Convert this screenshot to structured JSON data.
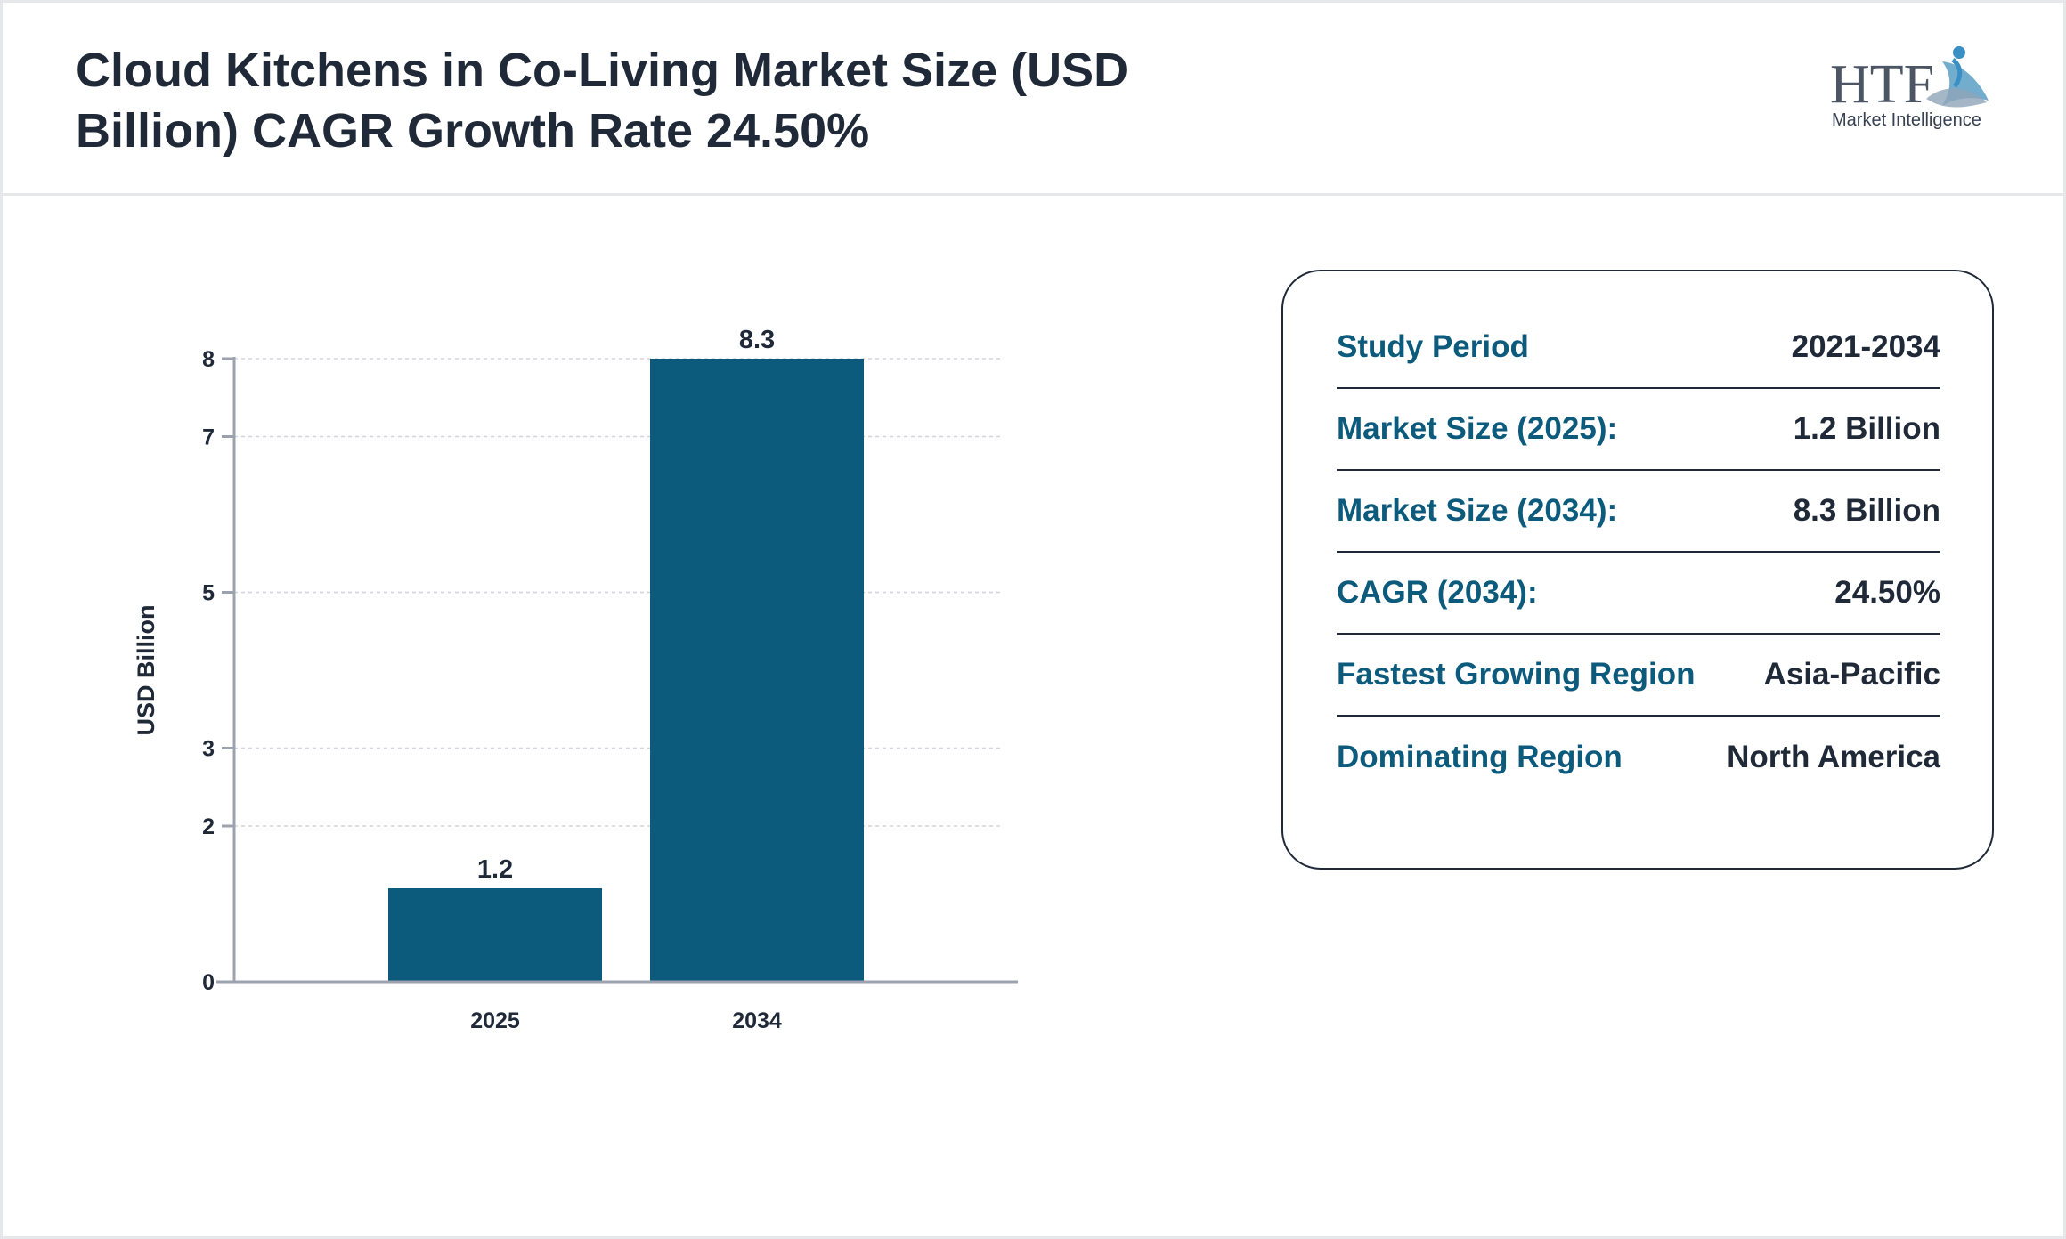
{
  "header": {
    "title": "Cloud Kitchens in Co-Living Market Size (USD Billion) CAGR Growth Rate 24.50%",
    "logo": {
      "mark": "HTF",
      "subtitle": "Market Intelligence"
    }
  },
  "colors": {
    "bar": "#0c5a7c",
    "label": "#0c5a7c",
    "text": "#1f2937",
    "grid": "#d1d5db",
    "axis": "#9ca3af"
  },
  "chart_data": {
    "type": "bar",
    "categories": [
      "2025",
      "2034"
    ],
    "values": [
      1.2,
      8.3
    ],
    "data_labels": [
      "1.2",
      "8.3"
    ],
    "ylabel": "USD Billion",
    "yticks": [
      "0",
      "2",
      "3",
      "5",
      "7",
      "8"
    ],
    "ylim": [
      0,
      8
    ],
    "grid": true,
    "legend": "none"
  },
  "info": {
    "rows": [
      {
        "label": "Study Period",
        "value": "2021-2034"
      },
      {
        "label": "Market Size (2025):",
        "value": "1.2 Billion"
      },
      {
        "label": "Market Size (2034):",
        "value": "8.3 Billion"
      },
      {
        "label": "CAGR (2034):",
        "value": "24.50%"
      },
      {
        "label": "Fastest Growing Region",
        "value": "Asia-Pacific"
      },
      {
        "label": "Dominating Region",
        "value": "North America"
      }
    ]
  }
}
